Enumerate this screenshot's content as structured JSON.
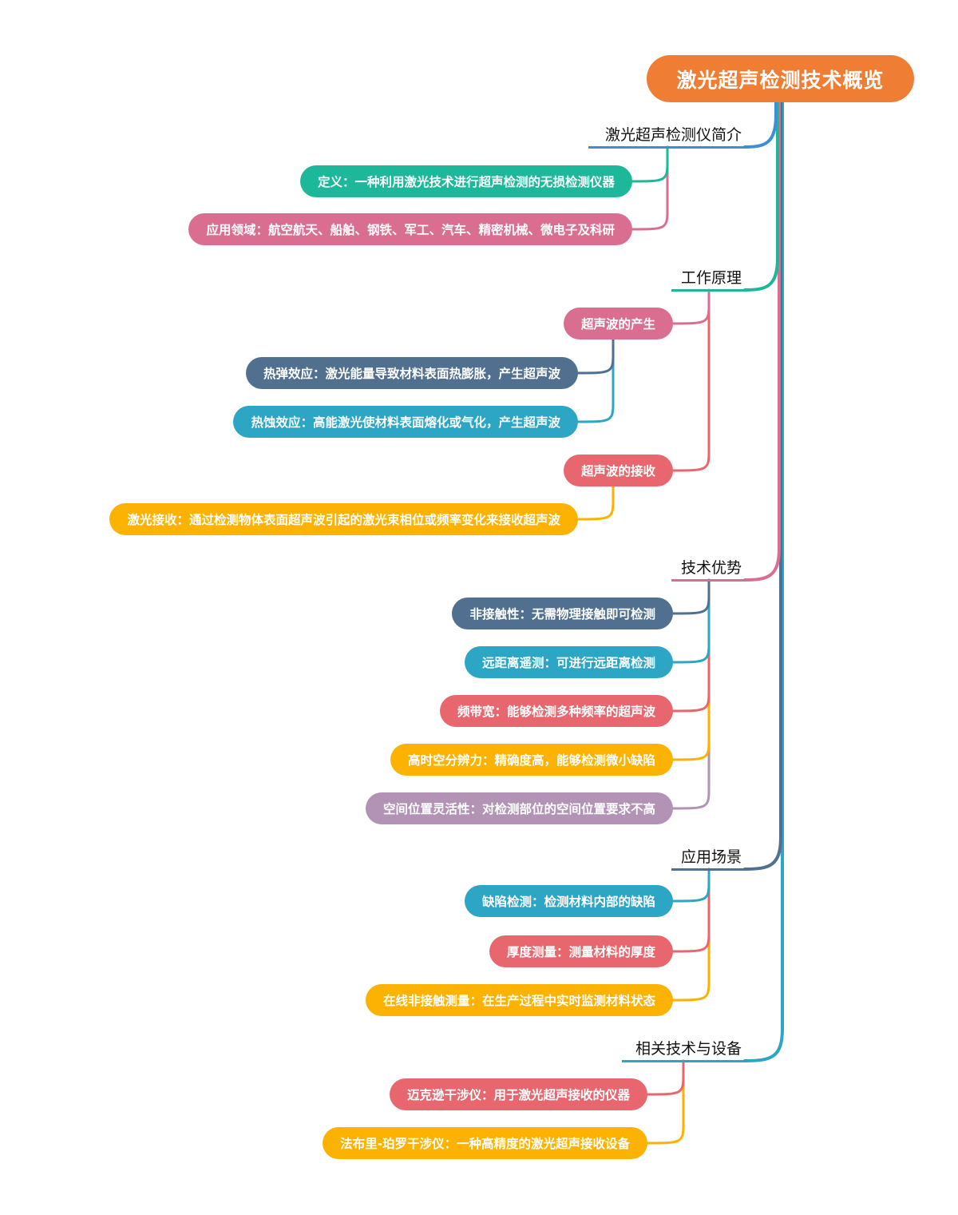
{
  "root": {
    "label": "激光超声检测技术概览",
    "color": "#EF7D33"
  },
  "branches": [
    {
      "label": "激光超声检测仪简介",
      "color": "#3B8FD8",
      "children": [
        {
          "label": "定义：一种利用激光技术进行超声检测的无损检测仪器",
          "color": "#1DB89A"
        },
        {
          "label": "应用领域：航空航天、船舶、钢铁、军工、汽车、精密机械、微电子及科研",
          "color": "#DA6E91"
        }
      ]
    },
    {
      "label": "工作原理",
      "color": "#1DB89A",
      "children": [
        {
          "label": "超声波的产生",
          "color": "#DA6E91",
          "children": [
            {
              "label": "热弹效应：激光能量导致材料表面热膨胀，产生超声波",
              "color": "#51708F"
            },
            {
              "label": "热蚀效应：高能激光使材料表面熔化或气化，产生超声波",
              "color": "#2DA5C4"
            }
          ]
        },
        {
          "label": "超声波的接收",
          "color": "#E8676F",
          "children": [
            {
              "label": "激光接收：通过检测物体表面超声波引起的激光束相位或频率变化来接收超声波",
              "color": "#FBB202"
            }
          ]
        }
      ]
    },
    {
      "label": "技术优势",
      "color": "#DA6E91",
      "children": [
        {
          "label": "非接触性：无需物理接触即可检测",
          "color": "#51708F"
        },
        {
          "label": "远距离遥测：可进行远距离检测",
          "color": "#2DA5C4"
        },
        {
          "label": "频带宽：能够检测多种频率的超声波",
          "color": "#E8676F"
        },
        {
          "label": "高时空分辨力：精确度高，能够检测微小缺陷",
          "color": "#FBB202"
        },
        {
          "label": "空间位置灵活性：对检测部位的空间位置要求不高",
          "color": "#B293B6"
        }
      ]
    },
    {
      "label": "应用场景",
      "color": "#51708F",
      "children": [
        {
          "label": "缺陷检测：检测材料内部的缺陷",
          "color": "#2DA5C4"
        },
        {
          "label": "厚度测量：测量材料的厚度",
          "color": "#E8676F"
        },
        {
          "label": "在线非接触测量：在生产过程中实时监测材料状态",
          "color": "#FBB202"
        }
      ]
    },
    {
      "label": "相关技术与设备",
      "color": "#2DA5C4",
      "children": [
        {
          "label": "迈克逊干涉仪：用于激光超声接收的仪器",
          "color": "#E8676F"
        },
        {
          "label": "法布里-珀罗干涉仪：一种高精度的激光超声接收设备",
          "color": "#FBB202"
        }
      ]
    }
  ]
}
